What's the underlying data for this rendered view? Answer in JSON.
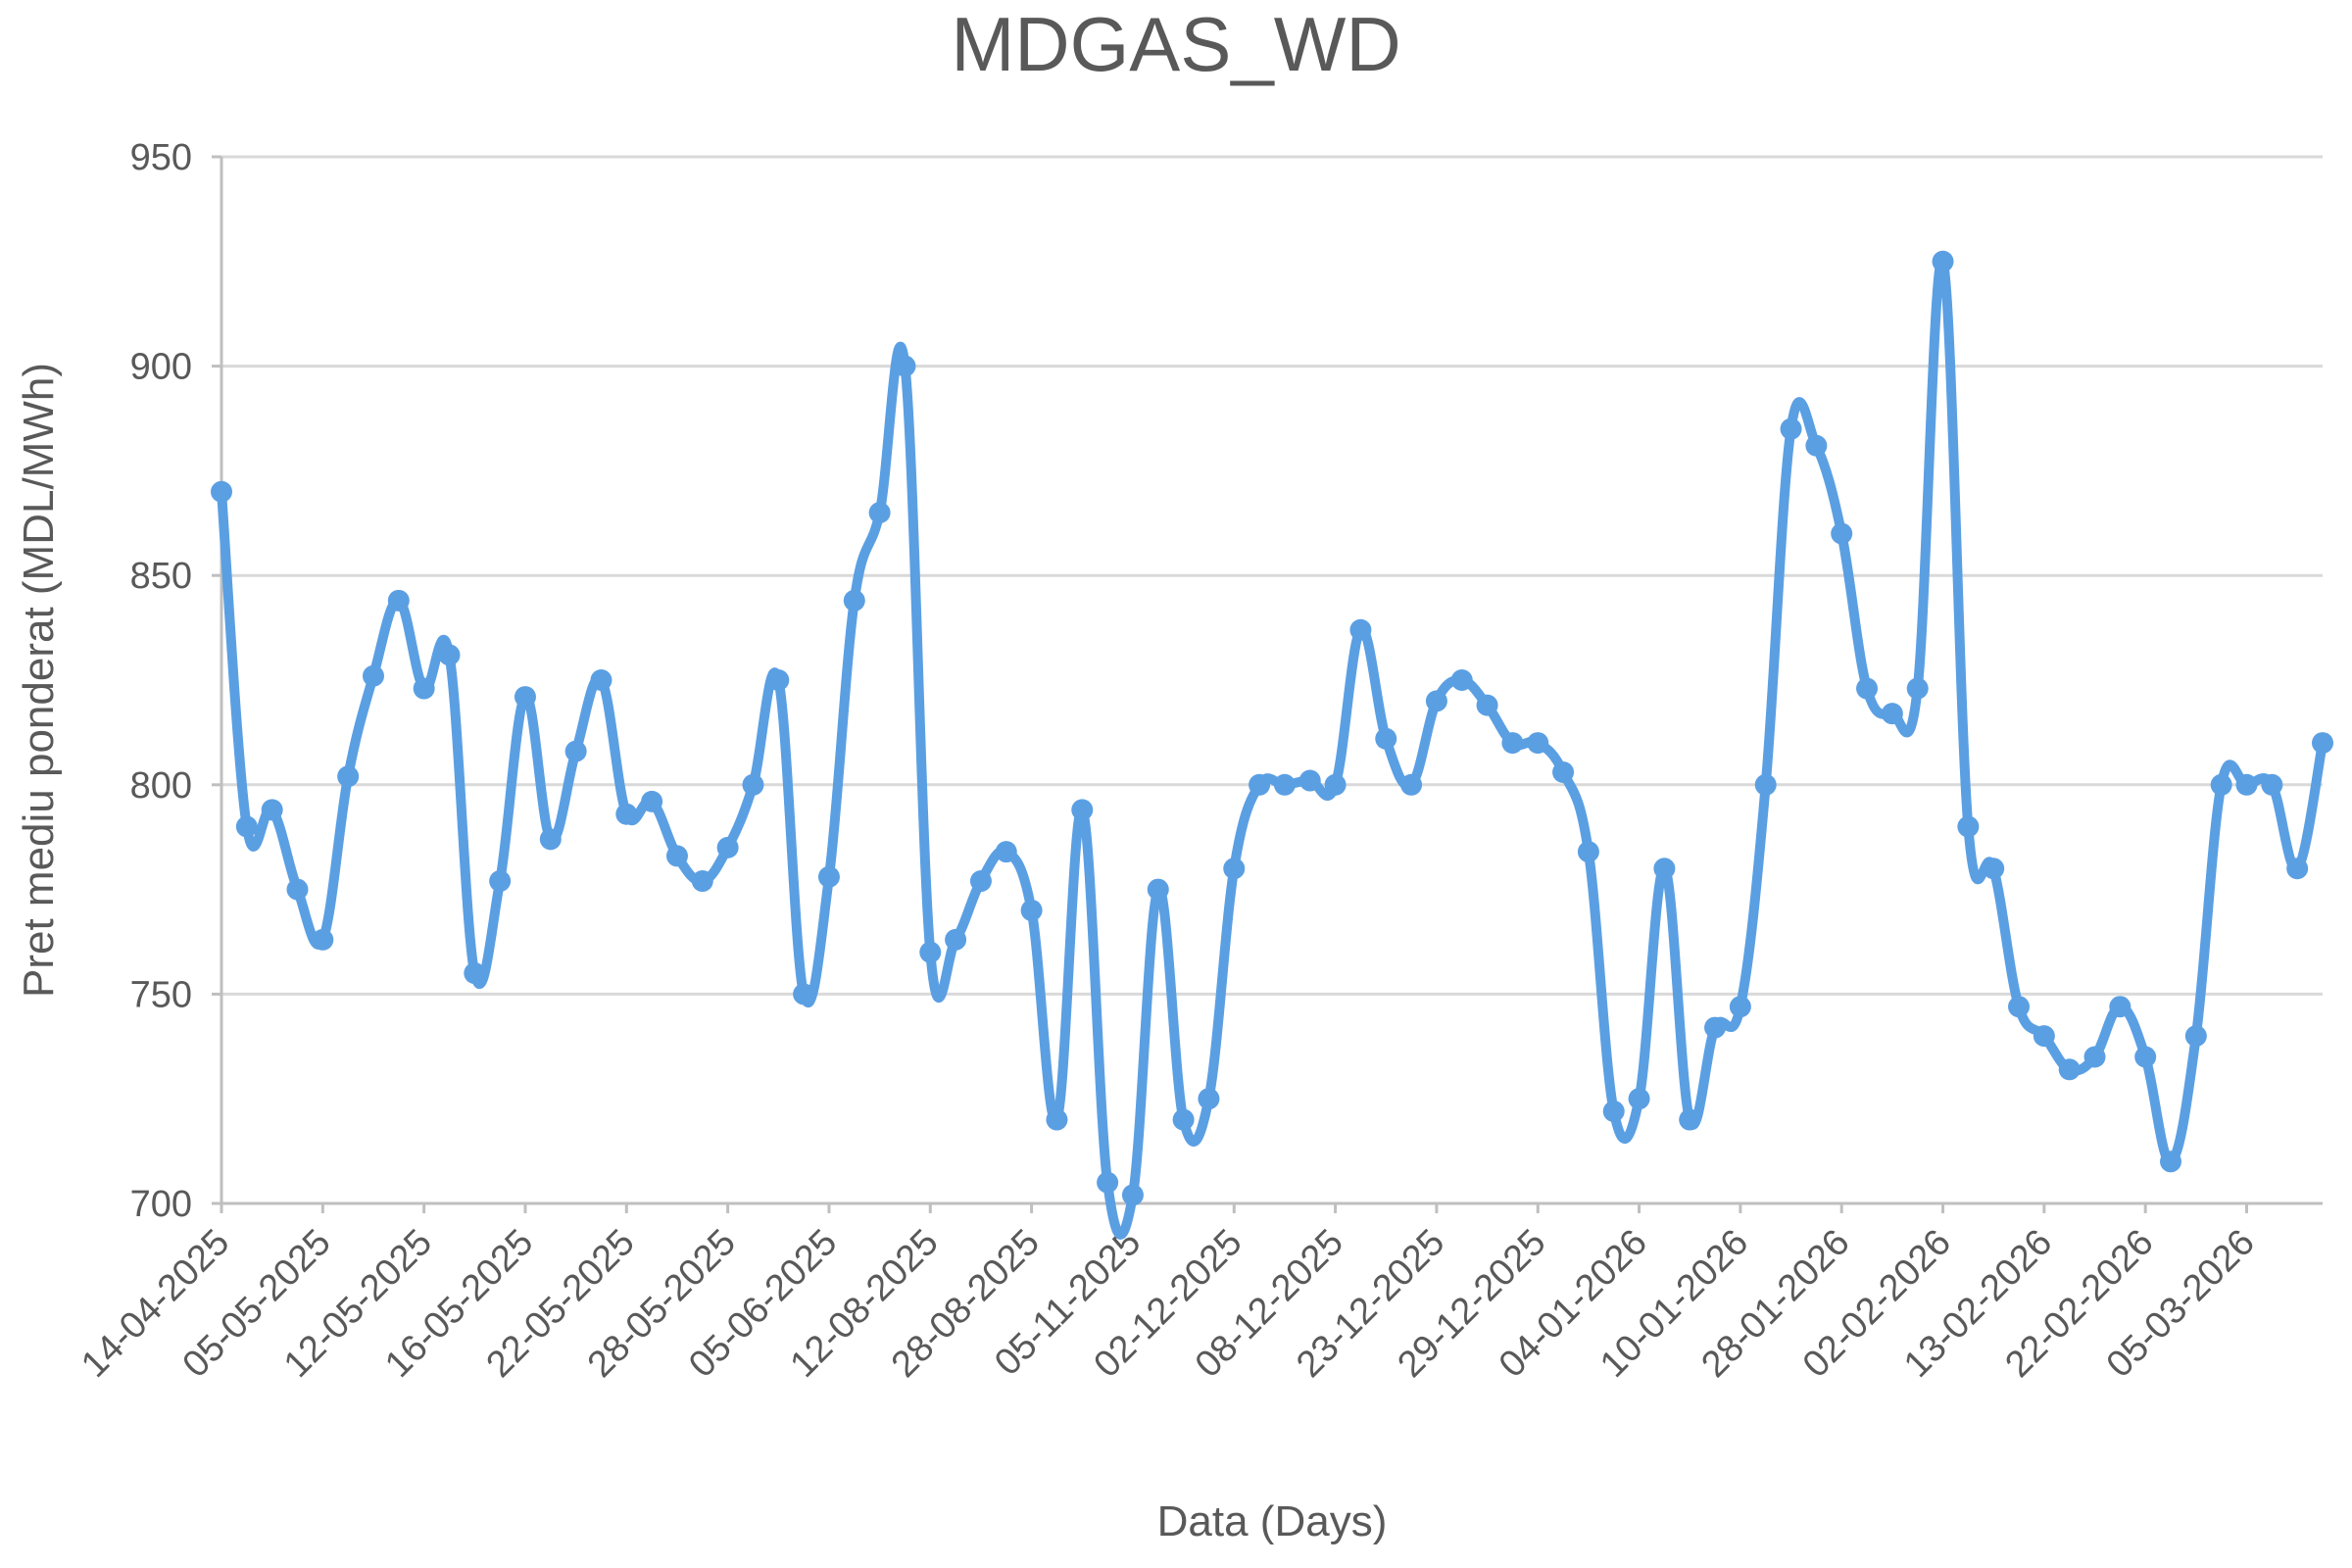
{
  "chart_data": {
    "type": "line",
    "title": "MDGAS_WD",
    "xlabel": "Data (Days)",
    "ylabel": "Pret mediu ponderat (MDL/MWh)",
    "ylim": [
      700,
      950
    ],
    "yticks": [
      700,
      750,
      800,
      850,
      900,
      950
    ],
    "grid": true,
    "legend": "none",
    "colors": {
      "series": "#5B9FE3",
      "title": "#595959",
      "grid": "#d9d9d9"
    },
    "tick_labels": [
      "14-04-2025",
      "05-05-2025",
      "12-05-2025",
      "16-05-2025",
      "22-05-2025",
      "28-05-2025",
      "05-06-2025",
      "12-08-2025",
      "28-08-2025",
      "05-11-2025",
      "02-12-2025",
      "08-12-2025",
      "23-12-2025",
      "29-12-2025",
      "04-01-2026",
      "10-01-2026",
      "28-01-2026",
      "02-02-2026",
      "13-02-2026",
      "22-02-2026",
      "05-03-2026"
    ],
    "series": [
      {
        "values": [
          870,
          790,
          794,
          775,
          763,
          802,
          826,
          844,
          823,
          831,
          755,
          777,
          821,
          787,
          808,
          825,
          793,
          796,
          783,
          777,
          785,
          800,
          825,
          750,
          778,
          844,
          865,
          900,
          760,
          763,
          777,
          784,
          770,
          720,
          794,
          705,
          702,
          775,
          720,
          725,
          780,
          800,
          800,
          801,
          800,
          837,
          811,
          800,
          820,
          825,
          819,
          810,
          810,
          803,
          784,
          722,
          725,
          780,
          720,
          742,
          747,
          800,
          885,
          881,
          860,
          823,
          817,
          823,
          925,
          790,
          780,
          747,
          740,
          732,
          735,
          747,
          735,
          710,
          740,
          800,
          800,
          800,
          780,
          810
        ]
      }
    ]
  }
}
